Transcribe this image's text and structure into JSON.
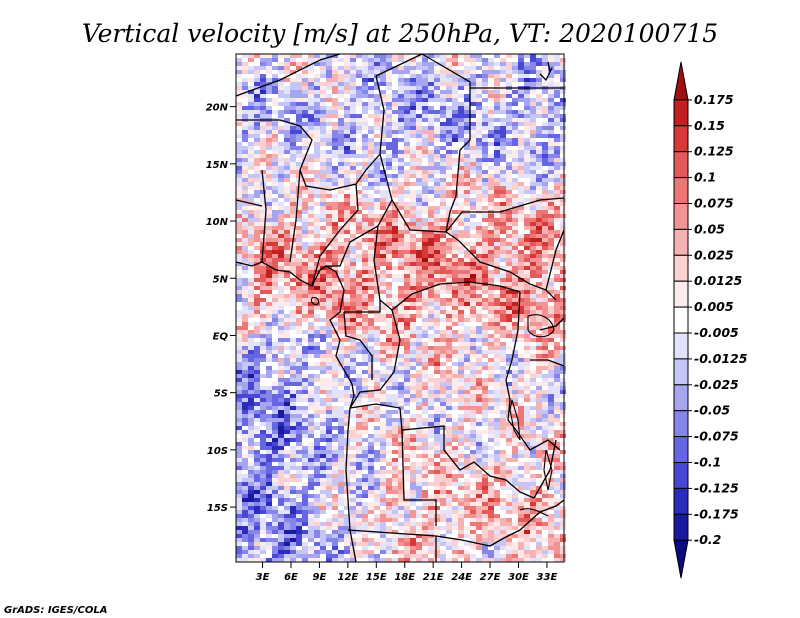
{
  "title": "Vertical velocity [m/s] at 250hPa, VT: 2020100715",
  "credit": "GrADS: IGES/COLA",
  "map": {
    "lat_ticks": [
      {
        "value": 20,
        "label": "20N"
      },
      {
        "value": 15,
        "label": "15N"
      },
      {
        "value": 10,
        "label": "10N"
      },
      {
        "value": 5,
        "label": "5N"
      },
      {
        "value": 0,
        "label": "EQ"
      },
      {
        "value": -5,
        "label": "5S"
      },
      {
        "value": -10,
        "label": "10S"
      },
      {
        "value": -15,
        "label": "15S"
      }
    ],
    "lon_ticks": [
      {
        "value": 3,
        "label": "3E"
      },
      {
        "value": 6,
        "label": "6E"
      },
      {
        "value": 9,
        "label": "9E"
      },
      {
        "value": 12,
        "label": "12E"
      },
      {
        "value": 15,
        "label": "15E"
      },
      {
        "value": 18,
        "label": "18E"
      },
      {
        "value": 21,
        "label": "21E"
      },
      {
        "value": 24,
        "label": "24E"
      },
      {
        "value": 27,
        "label": "27E"
      },
      {
        "value": 30,
        "label": "30E"
      },
      {
        "value": 33,
        "label": "33E"
      }
    ],
    "lon_range": [
      0.2,
      34.8
    ],
    "lat_range": [
      -19.8,
      24.6
    ]
  },
  "colorbar": {
    "labels": [
      "0.175",
      "0.15",
      "0.125",
      "0.1",
      "0.075",
      "0.05",
      "0.025",
      "0.0125",
      "0.005",
      "-0.005",
      "-0.0125",
      "-0.025",
      "-0.05",
      "-0.075",
      "-0.1",
      "-0.125",
      "-0.175",
      "-0.2"
    ],
    "colors": [
      "#a01010",
      "#c02020",
      "#d83838",
      "#e45a5a",
      "#ec7676",
      "#f29494",
      "#f6b2b2",
      "#fad0d0",
      "#fdeaea",
      "#ffffff",
      "#e2e2fb",
      "#c6c6f6",
      "#a6a6f0",
      "#8686ea",
      "#6666e2",
      "#4848d4",
      "#2c2cba",
      "#1a1aa0",
      "#0c0c80"
    ]
  }
}
